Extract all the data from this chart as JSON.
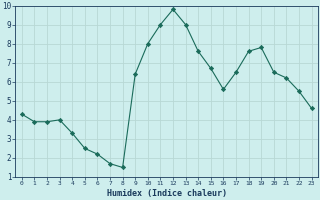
{
  "x": [
    0,
    1,
    2,
    3,
    4,
    5,
    6,
    7,
    8,
    9,
    10,
    11,
    12,
    13,
    14,
    15,
    16,
    17,
    18,
    19,
    20,
    21,
    22,
    23
  ],
  "y": [
    4.3,
    3.9,
    3.9,
    4.0,
    3.3,
    2.5,
    2.2,
    1.7,
    1.5,
    6.4,
    8.0,
    9.0,
    9.8,
    9.0,
    7.6,
    6.7,
    5.6,
    6.5,
    7.6,
    7.8,
    6.5,
    6.2,
    5.5,
    4.6
  ],
  "line_color": "#1a6b5a",
  "marker": "D",
  "marker_size": 2.2,
  "bg_color": "#ceeeed",
  "grid_color": "#b8d8d5",
  "xlabel": "Humidex (Indice chaleur)",
  "xlabel_color": "#1a3a5c",
  "tick_color": "#1a3a5c",
  "ylim": [
    1,
    10
  ],
  "xlim": [
    -0.5,
    23.5
  ],
  "yticks": [
    1,
    2,
    3,
    4,
    5,
    6,
    7,
    8,
    9,
    10
  ],
  "xticks": [
    0,
    1,
    2,
    3,
    4,
    5,
    6,
    7,
    8,
    9,
    10,
    11,
    12,
    13,
    14,
    15,
    16,
    17,
    18,
    19,
    20,
    21,
    22,
    23
  ],
  "figsize": [
    3.2,
    2.0
  ],
  "dpi": 100
}
